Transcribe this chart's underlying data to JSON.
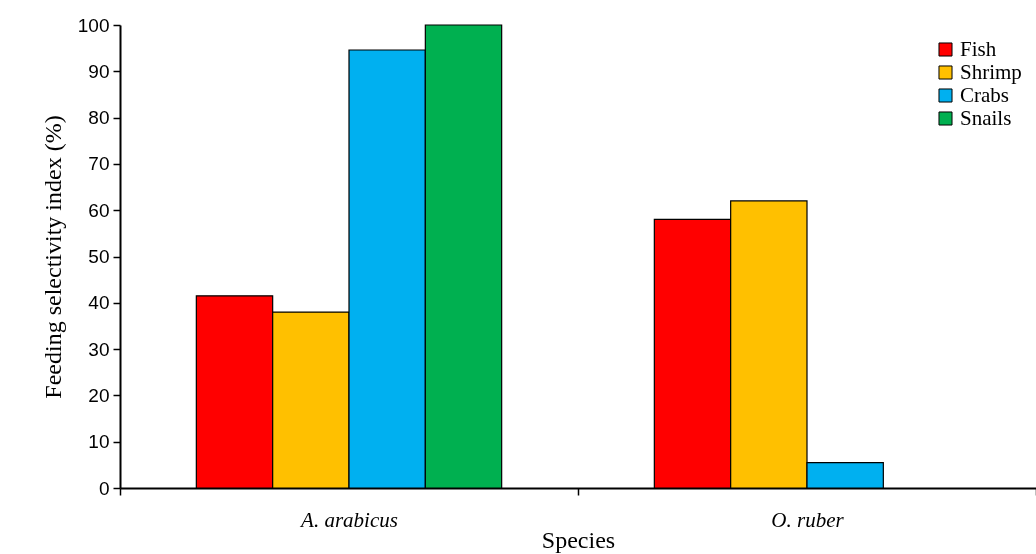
{
  "chart_data": {
    "type": "bar",
    "xlabel": "Species",
    "ylabel": "Feeding selectivity index (%)",
    "categories": [
      "A. arabicus",
      "O. ruber"
    ],
    "series": [
      {
        "name": "Fish",
        "color": "#ff0000",
        "values": [
          41.5,
          58
        ]
      },
      {
        "name": "Shrimp",
        "color": "#ffc000",
        "values": [
          38,
          62
        ]
      },
      {
        "name": "Crabs",
        "color": "#00b0f0",
        "values": [
          94.6,
          5.5
        ]
      },
      {
        "name": "Snails",
        "color": "#00b050",
        "values": [
          100,
          null
        ]
      }
    ],
    "ylim": [
      0,
      100
    ],
    "yticks": [
      0,
      10,
      20,
      30,
      40,
      50,
      60,
      70,
      80,
      90,
      100
    ],
    "grid": false,
    "legend": "top right"
  }
}
